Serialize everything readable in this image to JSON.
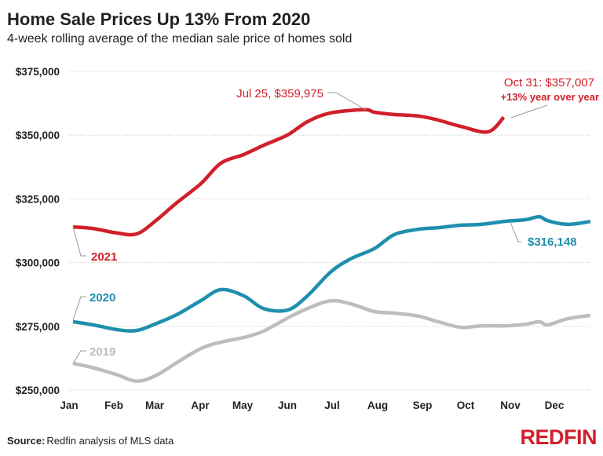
{
  "chart_data": {
    "type": "line",
    "title": "Home Sale Prices Up 13% From 2020",
    "subtitle": "4-week rolling average of the median sale price of homes sold",
    "xlabel": "",
    "ylabel": "",
    "ylim": [
      250000,
      375000
    ],
    "y_ticks": [
      250000,
      275000,
      300000,
      325000,
      350000,
      375000
    ],
    "y_tick_labels": [
      "$250,000",
      "$275,000",
      "$300,000",
      "$325,000",
      "$350,000",
      "$375,000"
    ],
    "x_tick_labels": [
      "Jan",
      "Feb",
      "Mar",
      "Apr",
      "May",
      "Jun",
      "Jul",
      "Aug",
      "Sep",
      "Oct",
      "Nov",
      "Dec"
    ],
    "grid": true,
    "series": [
      {
        "name": "2021",
        "color": "#d0202a",
        "x": [
          "Jan 1",
          "Jan 15",
          "Feb 1",
          "Feb 15",
          "Mar 1",
          "Mar 15",
          "Apr 1",
          "Apr 15",
          "May 1",
          "May 15",
          "Jun 1",
          "Jun 15",
          "Jul 1",
          "Jul 25",
          "Aug 1",
          "Aug 15",
          "Sep 1",
          "Sep 15",
          "Oct 1",
          "Oct 20",
          "Oct 31"
        ],
        "values": [
          314000,
          313400,
          311600,
          311300,
          316800,
          323500,
          331000,
          339000,
          342400,
          346000,
          350100,
          355300,
          358700,
          359975,
          359000,
          358100,
          357500,
          355900,
          353400,
          351300,
          357007
        ]
      },
      {
        "name": "2020",
        "color": "#1f8fae",
        "x": [
          "Jan 1",
          "Jan 15",
          "Feb 1",
          "Feb 15",
          "Mar 1",
          "Mar 15",
          "Apr 1",
          "Apr 15",
          "May 1",
          "May 15",
          "Jun 1",
          "Jun 15",
          "Jul 1",
          "Jul 15",
          "Aug 1",
          "Aug 15",
          "Sep 1",
          "Sep 15",
          "Oct 1",
          "Oct 15",
          "Nov 1",
          "Nov 15",
          "Nov 25",
          "Dec 1",
          "Dec 15",
          "Dec 31"
        ],
        "values": [
          276800,
          275600,
          273700,
          273400,
          276200,
          279600,
          285100,
          289400,
          287000,
          282000,
          281400,
          287000,
          296200,
          301400,
          305500,
          311000,
          313100,
          313700,
          314700,
          315000,
          316200,
          316800,
          318000,
          316400,
          315000,
          316148
        ]
      },
      {
        "name": "2019",
        "color": "#bdbdbd",
        "x": [
          "Jan 1",
          "Jan 15",
          "Feb 1",
          "Feb 15",
          "Mar 1",
          "Mar 15",
          "Apr 1",
          "Apr 15",
          "May 1",
          "May 15",
          "Jun 1",
          "Jun 15",
          "Jul 1",
          "Jul 15",
          "Aug 1",
          "Aug 15",
          "Sep 1",
          "Sep 15",
          "Oct 1",
          "Oct 15",
          "Nov 1",
          "Nov 15",
          "Nov 25",
          "Dec 1",
          "Dec 15",
          "Dec 31"
        ],
        "values": [
          260500,
          258800,
          256000,
          253500,
          255900,
          260800,
          266300,
          268800,
          270600,
          273100,
          278300,
          282000,
          285000,
          283900,
          280800,
          280200,
          279000,
          276800,
          274600,
          275200,
          275200,
          275800,
          276800,
          275600,
          278000,
          279300
        ]
      }
    ],
    "annotations": {
      "peak": "Jul 25, $359,975",
      "latest": "Oct 31: $357,007",
      "latest_change": "+13% year over year",
      "label_2021": "2021",
      "label_2020": "2020",
      "label_2019": "2019",
      "latest_2020": "$316,148"
    }
  },
  "footer": {
    "source_label": "Source:",
    "source_text": "Redfin analysis of MLS data",
    "logo": "REDFIN",
    "logo_color": "#d0202a"
  }
}
